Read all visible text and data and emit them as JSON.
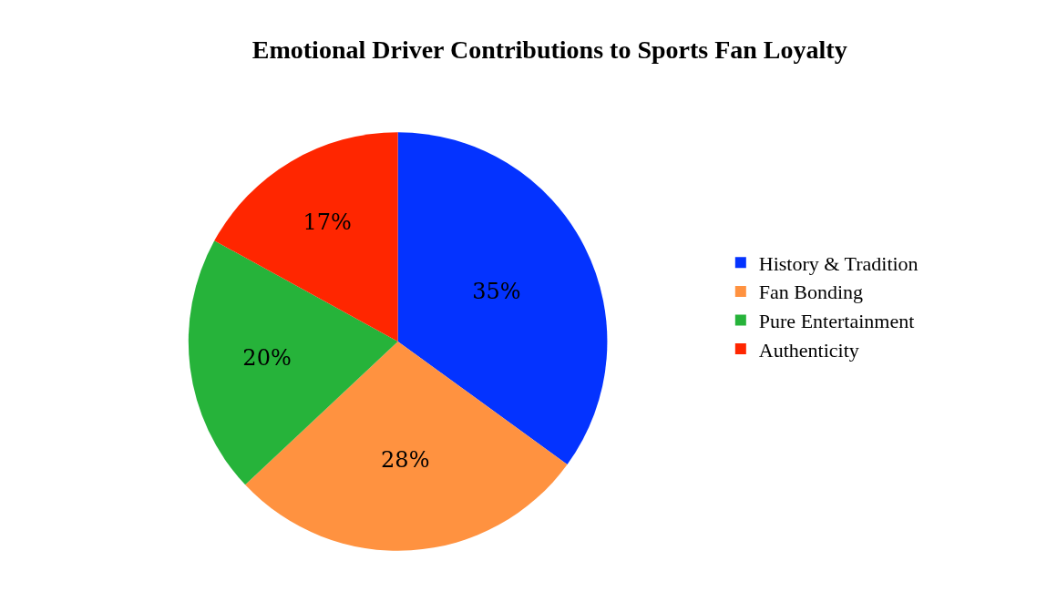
{
  "chart_data": {
    "type": "pie",
    "title": "Emotional Driver Contributions to Sports Fan Loyalty",
    "categories": [
      "History & Tradition",
      "Fan Bonding",
      "Pure Entertainment",
      "Authenticity"
    ],
    "values": [
      35,
      28,
      20,
      17
    ],
    "colors": [
      "#0433ff",
      "#ff9240",
      "#26b33a",
      "#ff2600"
    ],
    "value_labels": [
      "35%",
      "28%",
      "20%",
      "17%"
    ],
    "legend": "right"
  }
}
